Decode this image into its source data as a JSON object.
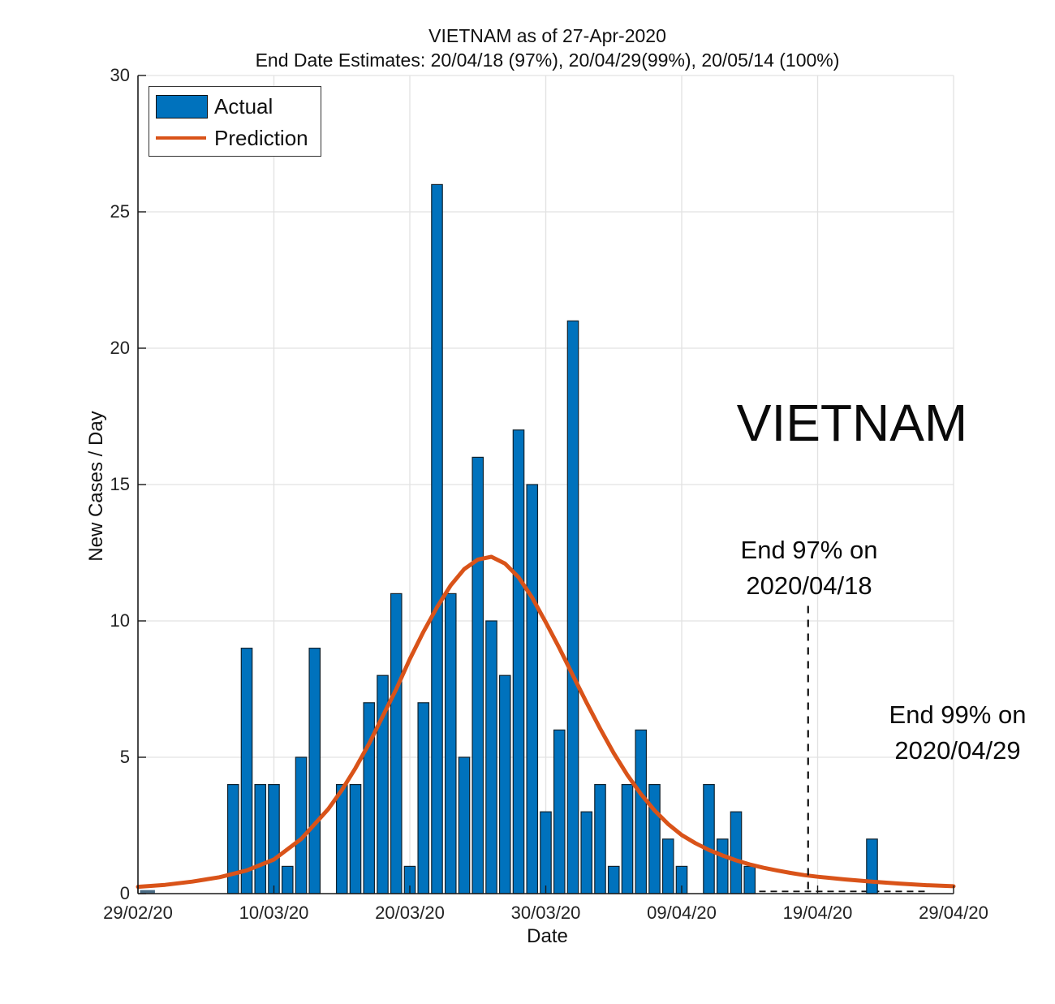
{
  "figure": {
    "title": "VIETNAM as of 27-Apr-2020",
    "subtitle": "End Date Estimates: 20/04/18 (97%), 20/04/29(99%), 20/05/14 (100%)",
    "watermark": "VIETNAM",
    "xlabel": "Date",
    "ylabel": "New Cases / Day",
    "legend": {
      "actual": "Actual",
      "prediction": "Prediction"
    },
    "annotations": {
      "end97_line1": "End 97% on",
      "end97_line2": "2020/04/18",
      "end99_line1": "End 99% on",
      "end99_line2": "2020/04/29"
    }
  },
  "colors": {
    "bar_fill": "#0072BD",
    "bar_edge": "#10222e",
    "prediction_line": "#D95319",
    "grid": "#e2e2e2",
    "axis": "#1a1a1a",
    "dashed_marker": "#111111",
    "notch": "#4a6b84"
  },
  "chart_data": {
    "type": "bar",
    "title": "VIETNAM as of 27-Apr-2020",
    "xlabel": "Date",
    "ylabel": "New Cases / Day",
    "ylim": [
      0,
      30
    ],
    "y_ticks": [
      0,
      5,
      10,
      15,
      20,
      25,
      30
    ],
    "x_tick_days": [
      0,
      10,
      20,
      30,
      40,
      50,
      60
    ],
    "x_tick_labels": [
      "29/02/20",
      "10/03/20",
      "20/03/20",
      "30/03/20",
      "09/04/20",
      "19/04/20",
      "29/04/20"
    ],
    "grid": "on",
    "legend_position": "top-left",
    "categories": [
      "29/02",
      "01/03",
      "02/03",
      "03/03",
      "04/03",
      "05/03",
      "06/03",
      "07/03",
      "08/03",
      "09/03",
      "10/03",
      "11/03",
      "12/03",
      "13/03",
      "14/03",
      "15/03",
      "16/03",
      "17/03",
      "18/03",
      "19/03",
      "20/03",
      "21/03",
      "22/03",
      "23/03",
      "24/03",
      "25/03",
      "26/03",
      "27/03",
      "28/03",
      "29/03",
      "30/03",
      "31/03",
      "01/04",
      "02/04",
      "03/04",
      "04/04",
      "05/04",
      "06/04",
      "07/04",
      "08/04",
      "09/04",
      "10/04",
      "11/04",
      "12/04",
      "13/04",
      "14/04",
      "15/04",
      "16/04",
      "17/04",
      "18/04",
      "19/04",
      "20/04",
      "21/04",
      "22/04",
      "23/04",
      "24/04",
      "25/04",
      "26/04",
      "27/04"
    ],
    "series": [
      {
        "name": "Actual",
        "type": "bar",
        "values": [
          0,
          0,
          0,
          0,
          0,
          0,
          0,
          4,
          9,
          4,
          4,
          1,
          5,
          9,
          0,
          4,
          4,
          7,
          8,
          11,
          1,
          7,
          26,
          11,
          5,
          16,
          10,
          8,
          17,
          15,
          3,
          6,
          21,
          3,
          4,
          1,
          4,
          6,
          4,
          2,
          1,
          0,
          4,
          2,
          3,
          1,
          0,
          0,
          0,
          0,
          0,
          0,
          0,
          0,
          2,
          0,
          0,
          0,
          0
        ]
      },
      {
        "name": "Prediction",
        "type": "line",
        "peak_value": 12.35,
        "peak_day": 25.5,
        "samples_day_value": [
          [
            0,
            0.25
          ],
          [
            2,
            0.32
          ],
          [
            4,
            0.44
          ],
          [
            6,
            0.6
          ],
          [
            8,
            0.85
          ],
          [
            10,
            1.25
          ],
          [
            12,
            2.0
          ],
          [
            13,
            2.55
          ],
          [
            14,
            3.1
          ],
          [
            15,
            3.8
          ],
          [
            16,
            4.6
          ],
          [
            17,
            5.5
          ],
          [
            18,
            6.5
          ],
          [
            19,
            7.5
          ],
          [
            20,
            8.6
          ],
          [
            21,
            9.6
          ],
          [
            22,
            10.5
          ],
          [
            23,
            11.3
          ],
          [
            24,
            11.9
          ],
          [
            25,
            12.25
          ],
          [
            26,
            12.35
          ],
          [
            27,
            12.1
          ],
          [
            28,
            11.6
          ],
          [
            29,
            10.85
          ],
          [
            30,
            9.95
          ],
          [
            31,
            9.0
          ],
          [
            32,
            8.0
          ],
          [
            33,
            7.0
          ],
          [
            34,
            6.05
          ],
          [
            35,
            5.15
          ],
          [
            36,
            4.35
          ],
          [
            37,
            3.65
          ],
          [
            38,
            3.05
          ],
          [
            39,
            2.55
          ],
          [
            40,
            2.15
          ],
          [
            41,
            1.85
          ],
          [
            42,
            1.6
          ],
          [
            43,
            1.4
          ],
          [
            44,
            1.22
          ],
          [
            45,
            1.07
          ],
          [
            46,
            0.95
          ],
          [
            47,
            0.85
          ],
          [
            48,
            0.76
          ],
          [
            49,
            0.68
          ],
          [
            50,
            0.62
          ],
          [
            52,
            0.52
          ],
          [
            54,
            0.44
          ],
          [
            56,
            0.37
          ],
          [
            58,
            0.31
          ],
          [
            60,
            0.27
          ]
        ]
      }
    ],
    "markers": {
      "end97_dashed_vline": {
        "day": 49.3,
        "top_value": 10.55
      },
      "zero_dashed_hline": {
        "from_day": 45.7,
        "to_day": 58.0,
        "value": 0.08
      },
      "baseline_notch": {
        "from_day": 0.15,
        "to_day": 1.25,
        "value": 0.13
      }
    }
  }
}
